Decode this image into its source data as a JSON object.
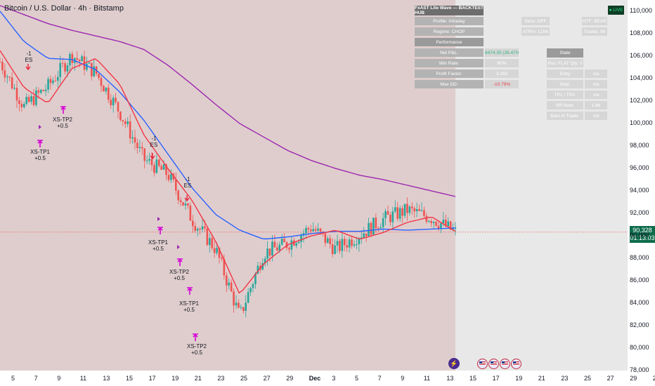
{
  "header": {
    "title": "Bitcoin / U.S. Dollar · 4h · Bitstamp"
  },
  "hud": {
    "title": "FxAST Lite Wave — BACKTEST HUB",
    "profile": "Profile: Intraday",
    "regime": "Regime: CHOP",
    "performance_label": "Performance",
    "net_pnl_label": "Net P&L:",
    "net_pnl_value": "26474.35 (26.47%)",
    "win_rate_label": "Win Rate:",
    "win_rate_value": "60%",
    "profit_factor_label": "Profit Factor:",
    "profit_factor_value": "3.293",
    "max_dd_label": "Max DD:",
    "max_dd_value": "-10.79%",
    "sess": "Sess: OFF",
    "atr": "ATR%: LOW",
    "htf": "HTF: BEAR",
    "trades": "Trades: 90",
    "state_label": "State",
    "pos": "Pos: FLAT Qty: 0",
    "entry_label": "Entry",
    "entry_value": "n/a",
    "stop_label": "Stop:",
    "stop_value": "n/a",
    "tp_label": "TP1 / TP2:",
    "tp_value": "n/a",
    "rr_label": "RR Now:",
    "rr_value": "1.86",
    "bars_label": "Bars in Trade:",
    "bars_value": "n/a",
    "live": "● LIVE",
    "net_pnl_color": "#2fb37f",
    "max_dd_color": "#e8404e"
  },
  "price_label": {
    "price": "90,328",
    "countdown": "01:13:03"
  },
  "annotations": [
    {
      "id": "a1",
      "lines": [
        "-1",
        "ES"
      ]
    },
    {
      "id": "a2",
      "lines": [
        "XS-TP2",
        "+0.5"
      ]
    },
    {
      "id": "a3",
      "lines": [
        "XS-TP1",
        "+0.5"
      ]
    },
    {
      "id": "a4",
      "lines": [
        "-1",
        "ES"
      ]
    },
    {
      "id": "a5",
      "lines": [
        "-1",
        "ES"
      ]
    },
    {
      "id": "a6",
      "lines": [
        "XS-TP1",
        "+0.5"
      ]
    },
    {
      "id": "a7",
      "lines": [
        "XS-TP2",
        "+0.5"
      ]
    },
    {
      "id": "a8",
      "lines": [
        "XS-TP1",
        "+0.5"
      ]
    },
    {
      "id": "a9",
      "lines": [
        "XS-TP2",
        "+0.5"
      ]
    }
  ],
  "chart_data": {
    "type": "line",
    "instrument": "BTCUSD",
    "timeframe": "4h",
    "ylim": [
      78000,
      111000
    ],
    "y_ticks": [
      110000,
      108000,
      106000,
      104000,
      102000,
      100000,
      98000,
      96000,
      94000,
      92000,
      90000,
      88000,
      86000,
      84000,
      82000,
      80000,
      78000
    ],
    "y_tick_labels": [
      "110,000",
      "108,000",
      "106,000",
      "104,000",
      "102,000",
      "100,000",
      "98,000",
      "96,000",
      "94,000",
      "92,000",
      "90,000",
      "88,000",
      "86,000",
      "84,000",
      "82,000",
      "80,000",
      "78,000"
    ],
    "x_tick_labels": [
      "5",
      "7",
      "9",
      "11",
      "13",
      "15",
      "17",
      "19",
      "21",
      "23",
      "25",
      "27",
      "29",
      "Dec",
      "3",
      "5",
      "7",
      "9",
      "11",
      "13",
      "15",
      "17",
      "19",
      "21",
      "23",
      "25",
      "27",
      "29",
      "2"
    ],
    "last_price": 90328,
    "colors": {
      "up": "#26a69a",
      "down": "#ef5350",
      "ema_fast": "#f23645",
      "ema_mid": "#2962ff",
      "ema_slow": "#9c27b0",
      "bg_zone": "#dfcdcd"
    },
    "series": [
      {
        "id": "ema_slow",
        "x": [
          0,
          1,
          2,
          3,
          4,
          5,
          6,
          7,
          8,
          9,
          10,
          11,
          12,
          13,
          14,
          15,
          16,
          17,
          18,
          19
        ],
        "values": [
          110500,
          109700,
          108900,
          108300,
          107800,
          107300,
          106600,
          105200,
          103500,
          101700,
          100000,
          98800,
          97600,
          96700,
          96000,
          95400,
          95000,
          94500,
          94000,
          93500
        ]
      },
      {
        "id": "ema_mid",
        "x": [
          0,
          1,
          2,
          3,
          4,
          5,
          6,
          7,
          8,
          9,
          10,
          11,
          12,
          13,
          14,
          15,
          16,
          17,
          18,
          19
        ],
        "values": [
          110000,
          107300,
          105800,
          105700,
          104800,
          102800,
          100300,
          97300,
          94300,
          91900,
          90500,
          89700,
          89900,
          90200,
          90400,
          90400,
          90600,
          90500,
          90600,
          90700
        ]
      },
      {
        "id": "ema_fast",
        "x": [
          0,
          1,
          2,
          3,
          4,
          5,
          6,
          7,
          8,
          9,
          10,
          11,
          12,
          13,
          14,
          15,
          16,
          17,
          18,
          19
        ],
        "values": [
          106500,
          103200,
          101800,
          104900,
          105800,
          103500,
          99000,
          96000,
          93200,
          89500,
          84800,
          87500,
          89200,
          90000,
          90500,
          89700,
          90300,
          91200,
          91700,
          90400
        ]
      },
      {
        "id": "close",
        "x": [
          0,
          1,
          2,
          3,
          4,
          5,
          6,
          7,
          8,
          9,
          10,
          11,
          12,
          13,
          14,
          15,
          16,
          17,
          18,
          19
        ],
        "values": [
          105500,
          101500,
          103300,
          106100,
          104500,
          101000,
          96800,
          95500,
          91500,
          88800,
          82800,
          88500,
          89300,
          90800,
          88800,
          90100,
          91500,
          92300,
          91600,
          90328
        ]
      }
    ]
  }
}
